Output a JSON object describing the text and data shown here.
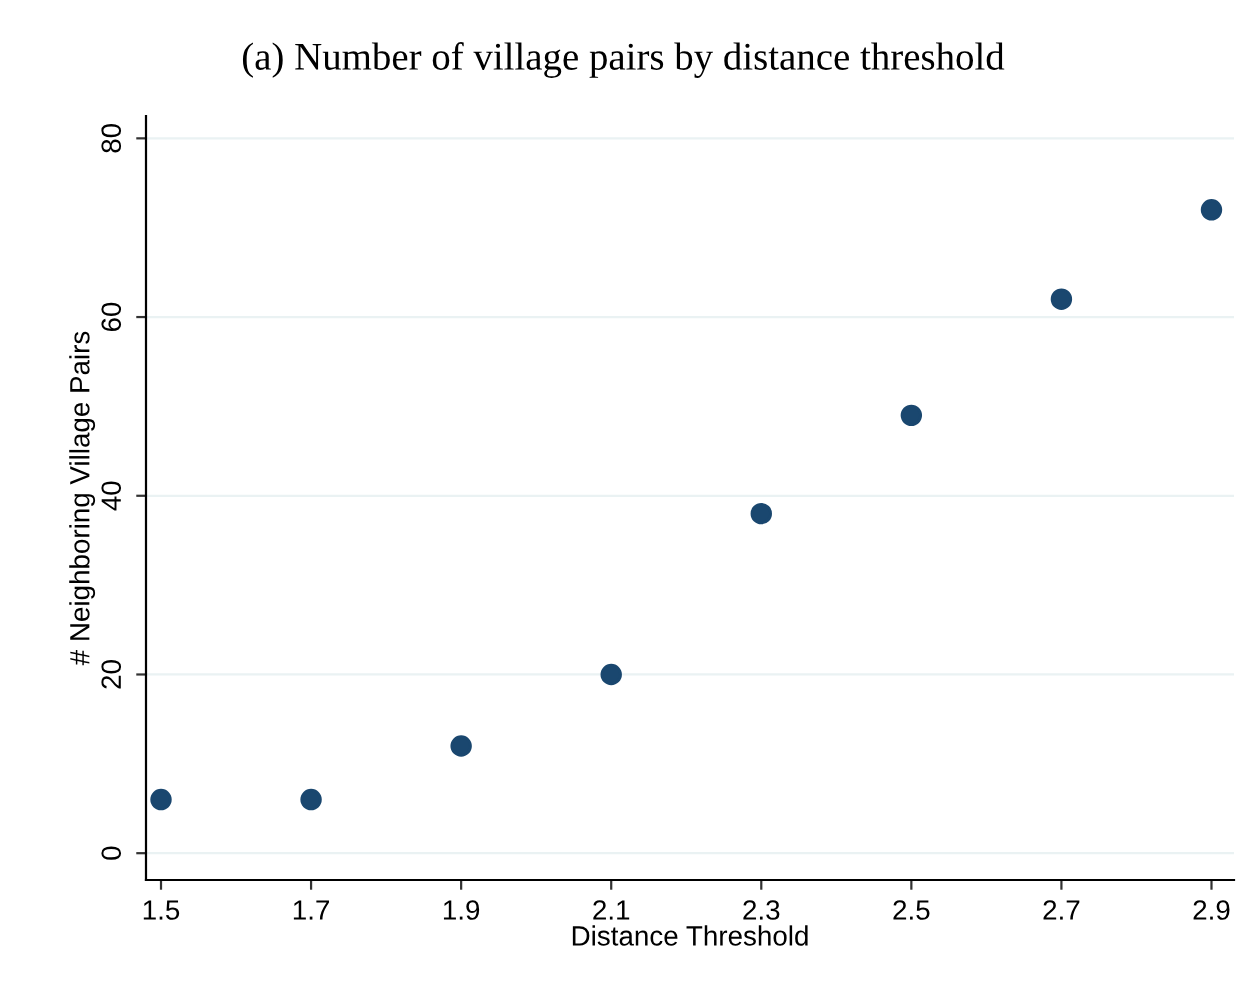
{
  "chart_data": {
    "type": "scatter",
    "title": "(a) Number of village pairs by distance threshold",
    "xlabel": "Distance Threshold",
    "ylabel": "# Neighboring Village Pairs",
    "x": [
      1.5,
      1.7,
      1.9,
      2.1,
      2.3,
      2.5,
      2.7,
      2.9
    ],
    "series": [
      {
        "color": "#1a476f",
        "values": [
          6,
          6,
          12,
          20,
          38,
          49,
          62,
          72
        ]
      }
    ],
    "xlim": [
      1.48,
      2.93
    ],
    "xticks": [
      1.5,
      1.7,
      1.9,
      2.1,
      2.3,
      2.5,
      2.7,
      2.9
    ],
    "ylim": [
      -3,
      82.5
    ],
    "yticks": [
      0,
      20,
      40,
      60,
      80
    ],
    "grid": "y",
    "marker": "circle"
  }
}
